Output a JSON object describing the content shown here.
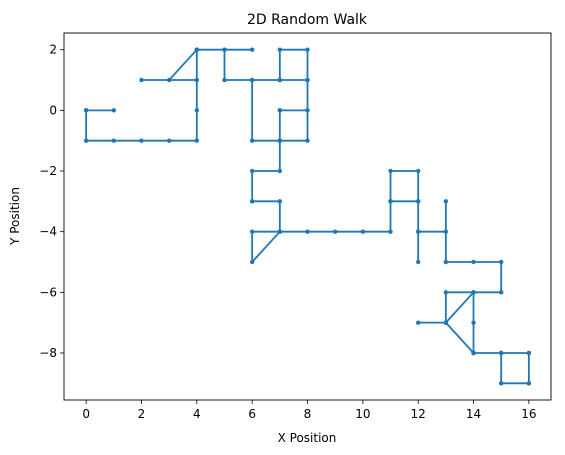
{
  "chart_data": {
    "type": "line",
    "title": "2D Random Walk",
    "xlabel": "X Position",
    "ylabel": "Y Position",
    "xlim": [
      -0.8,
      16.8
    ],
    "ylim": [
      -9.55,
      2.55
    ],
    "x_ticks": [
      0,
      2,
      4,
      6,
      8,
      10,
      12,
      14,
      16
    ],
    "y_ticks": [
      2,
      0,
      -2,
      -4,
      -6,
      -8
    ],
    "x_tick_labels": [
      "0",
      "2",
      "4",
      "6",
      "8",
      "10",
      "12",
      "14",
      "16"
    ],
    "y_tick_labels": [
      "2",
      "0",
      "−2",
      "−4",
      "−6",
      "−8"
    ],
    "grid": false,
    "series": [
      {
        "color": "#1f77b4",
        "marker": "circle",
        "x": [
          0,
          1,
          0,
          0,
          1,
          2,
          3,
          4,
          4,
          4,
          4,
          3,
          2,
          4,
          4,
          5,
          6,
          5,
          5,
          6,
          7,
          8,
          8,
          7,
          7,
          8,
          8,
          8,
          7,
          7,
          7,
          8,
          8,
          7,
          6,
          6,
          6,
          7,
          7,
          6,
          6,
          6,
          7,
          7,
          6,
          6,
          7,
          8,
          9,
          10,
          11,
          11,
          11,
          12,
          12,
          11,
          11,
          12,
          12,
          12,
          12,
          13,
          13,
          13,
          13,
          14,
          15,
          15,
          14,
          13,
          13,
          14,
          14,
          14,
          14,
          14,
          15,
          16,
          16,
          15,
          15,
          15,
          16,
          16,
          15,
          14,
          13,
          12
        ],
        "y": [
          0,
          0,
          0,
          -1,
          -1,
          -1,
          -1,
          -1,
          0,
          1,
          2,
          1,
          1,
          1,
          2,
          2,
          2,
          2,
          1,
          1,
          1,
          1,
          2,
          2,
          1,
          1,
          0,
          -1,
          -1,
          0,
          0,
          0,
          1,
          1,
          1,
          1,
          -1,
          -1,
          -2,
          -2,
          -3,
          -3,
          -3,
          -4,
          -4,
          -5,
          -4,
          -4,
          -4,
          -4,
          -4,
          -3,
          -2,
          -2,
          -3,
          -3,
          -3,
          -3,
          -4,
          -5,
          -4,
          -4,
          -3,
          -5,
          -5,
          -5,
          -5,
          -6,
          -6,
          -6,
          -7,
          -6,
          -7,
          -8,
          -8,
          -8,
          -8,
          -8,
          -9,
          -9,
          -8,
          -9,
          -9,
          -8,
          -8,
          -8,
          -7,
          -7
        ]
      }
    ]
  }
}
